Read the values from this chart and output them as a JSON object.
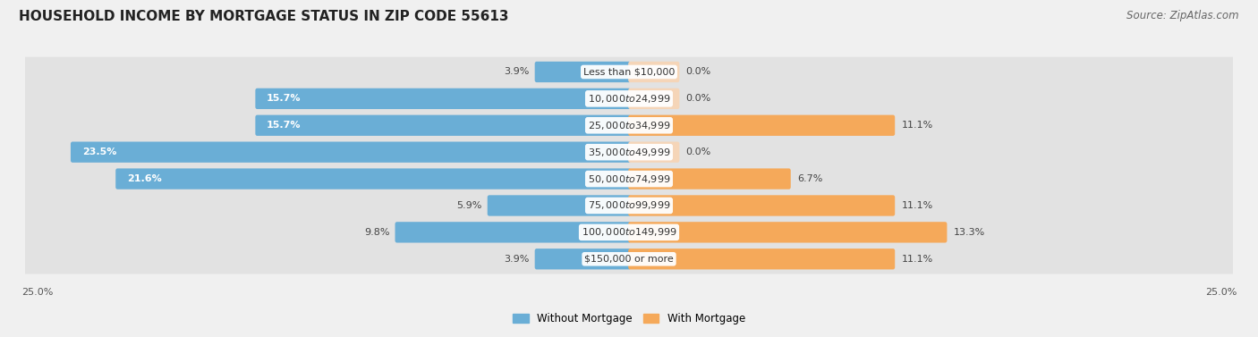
{
  "title": "Household Income by Mortgage Status in Zip Code 55613",
  "source": "Source: ZipAtlas.com",
  "categories": [
    "Less than $10,000",
    "$10,000 to $24,999",
    "$25,000 to $34,999",
    "$35,000 to $49,999",
    "$50,000 to $74,999",
    "$75,000 to $99,999",
    "$100,000 to $149,999",
    "$150,000 or more"
  ],
  "without_mortgage": [
    3.9,
    15.7,
    15.7,
    23.5,
    21.6,
    5.9,
    9.8,
    3.9
  ],
  "with_mortgage": [
    0.0,
    0.0,
    11.1,
    0.0,
    6.7,
    11.1,
    13.3,
    11.1
  ],
  "color_without": "#6aaed6",
  "color_with": "#f5a95a",
  "color_with_zero": "#f5d5b8",
  "x_max": 25.0,
  "fig_bg": "#f0f0f0",
  "row_bg": "#e2e2e2",
  "bar_height": 0.62,
  "title_fontsize": 11,
  "source_fontsize": 8.5,
  "label_fontsize": 8,
  "pct_fontsize": 8,
  "legend_fontsize": 8.5
}
